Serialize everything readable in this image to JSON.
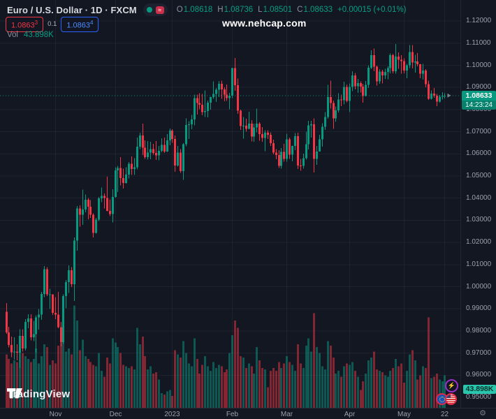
{
  "header": {
    "symbol_title": "Euro / U.S. Dollar · 1D · FXCM",
    "toggle": {
      "strategy_glyph": "≈"
    },
    "legend": {
      "o_label": "O",
      "o": "1.08618",
      "h_label": "H",
      "h": "1.08736",
      "l_label": "L",
      "l": "1.08501",
      "c_label": "C",
      "c": "1.08633",
      "change": "+0.00015 (+0.01%)"
    },
    "bid": {
      "main": "1.0863",
      "sup": "3"
    },
    "spread": "0.1",
    "ask": {
      "main": "1.0863",
      "sup": "4"
    },
    "vol_label": "Vol",
    "vol_value": "43.898K"
  },
  "watermark": "www.nehcap.com",
  "footer": {
    "logo_text": "TradingView"
  },
  "axis_right": {
    "price_badge": {
      "price": "1.08633",
      "countdown": "14:23:24"
    },
    "volume_badge": "43.898K"
  },
  "icons": {
    "gear": "⚙",
    "bolt": "⚡"
  },
  "chart_data": {
    "type": "candlestick_with_volume",
    "symbol": "EUR/USD",
    "interval": "1D",
    "exchange": "FXCM",
    "title": "Euro / U.S. Dollar",
    "colors": {
      "up": "#089981",
      "down": "#f23645",
      "vol_up": "rgba(8,153,129,0.5)",
      "vol_down": "rgba(242,54,69,0.5)"
    },
    "price_line": {
      "value": 1.08633,
      "label": "1.08633",
      "countdown": "14:23:24"
    },
    "y_axis": {
      "labels": [
        "1.12000",
        "1.11000",
        "1.10000",
        "1.09000",
        "1.08000",
        "1.07000",
        "1.06000",
        "1.05000",
        "1.04000",
        "1.03000",
        "1.02000",
        "1.01000",
        "1.00000",
        "0.99000",
        "0.98000",
        "0.97000",
        "0.96000",
        "0.95000"
      ]
    },
    "x_axis": {
      "ticks": [
        {
          "label": "Nov",
          "index": 18
        },
        {
          "label": "Dec",
          "index": 40
        },
        {
          "label": "2023",
          "index": 61
        },
        {
          "label": "Feb",
          "index": 83
        },
        {
          "label": "Mar",
          "index": 103
        },
        {
          "label": "Apr",
          "index": 126
        },
        {
          "label": "May",
          "index": 146
        },
        {
          "label": "22",
          "index": 161
        }
      ]
    },
    "candles_format": [
      "open",
      "high",
      "low",
      "close",
      "volume_k"
    ],
    "candles": [
      [
        0.9886,
        0.9926,
        0.9787,
        0.9794,
        72
      ],
      [
        0.9794,
        0.9819,
        0.9726,
        0.9737,
        66
      ],
      [
        0.9737,
        0.9774,
        0.9682,
        0.9704,
        60
      ],
      [
        0.9704,
        0.9772,
        0.967,
        0.9707,
        64
      ],
      [
        0.9707,
        0.974,
        0.9668,
        0.9702,
        62
      ],
      [
        0.9702,
        0.9807,
        0.9632,
        0.9777,
        92
      ],
      [
        0.9777,
        0.9807,
        0.9707,
        0.9721,
        74
      ],
      [
        0.9721,
        0.9854,
        0.9712,
        0.984,
        70
      ],
      [
        0.984,
        0.9875,
        0.9813,
        0.9857,
        66
      ],
      [
        0.9857,
        0.9875,
        0.9757,
        0.9772,
        62
      ],
      [
        0.9772,
        0.9845,
        0.9754,
        0.9785,
        66
      ],
      [
        0.9785,
        0.987,
        0.9704,
        0.9861,
        80
      ],
      [
        0.9861,
        0.9899,
        0.9806,
        0.9874,
        60
      ],
      [
        0.9874,
        0.9976,
        0.985,
        0.9967,
        70
      ],
      [
        0.9967,
        1.0093,
        0.9952,
        1.0079,
        86
      ],
      [
        1.0079,
        1.0089,
        0.9957,
        0.9965,
        82
      ],
      [
        0.9965,
        0.999,
        0.9899,
        0.9965,
        58
      ],
      [
        0.9965,
        0.9965,
        0.9872,
        0.9882,
        64
      ],
      [
        0.9882,
        0.9952,
        0.9853,
        0.9874,
        60
      ],
      [
        0.9874,
        0.9976,
        0.9813,
        0.9817,
        84
      ],
      [
        0.9817,
        0.984,
        0.973,
        0.975,
        88
      ],
      [
        0.975,
        0.9965,
        0.9741,
        0.9957,
        108
      ],
      [
        0.9957,
        1.003,
        0.9903,
        1.002,
        76
      ],
      [
        1.002,
        1.0096,
        0.9972,
        1.0074,
        80
      ],
      [
        1.0074,
        1.0089,
        0.9998,
        1.0011,
        72
      ],
      [
        1.0011,
        1.0222,
        0.9936,
        1.0209,
        138
      ],
      [
        1.0209,
        1.0364,
        1.0163,
        1.0353,
        118
      ],
      [
        1.0353,
        1.0368,
        1.0271,
        1.0325,
        78
      ],
      [
        1.0325,
        1.0438,
        1.0279,
        1.0349,
        92
      ],
      [
        1.0349,
        1.0417,
        1.0336,
        1.0393,
        70
      ],
      [
        1.0393,
        1.0401,
        1.0305,
        1.0362,
        66
      ],
      [
        1.0362,
        1.0391,
        1.031,
        1.0325,
        62
      ],
      [
        1.0325,
        1.0332,
        1.0223,
        1.0243,
        58
      ],
      [
        1.0243,
        1.031,
        1.024,
        1.0303,
        56
      ],
      [
        1.0303,
        1.0405,
        1.0296,
        1.0399,
        74
      ],
      [
        1.0399,
        1.0448,
        1.0382,
        1.041,
        50
      ],
      [
        1.041,
        1.0421,
        1.0354,
        1.04,
        42
      ],
      [
        1.04,
        1.0497,
        1.034,
        1.0343,
        68
      ],
      [
        1.0343,
        1.0394,
        1.0319,
        1.0328,
        60
      ],
      [
        1.0328,
        1.044,
        1.029,
        1.0406,
        94
      ],
      [
        1.0406,
        1.0539,
        1.0402,
        1.0525,
        88
      ],
      [
        1.0525,
        1.0545,
        1.0428,
        1.0537,
        82
      ],
      [
        1.0537,
        1.0585,
        1.0458,
        1.049,
        74
      ],
      [
        1.049,
        1.0533,
        1.0443,
        1.0468,
        58
      ],
      [
        1.0468,
        1.0539,
        1.0466,
        1.0506,
        56
      ],
      [
        1.0506,
        1.0563,
        1.0489,
        1.0556,
        54
      ],
      [
        1.0556,
        1.0589,
        1.0505,
        1.0531,
        56
      ],
      [
        1.0531,
        1.058,
        1.0505,
        1.0539,
        52
      ],
      [
        1.0539,
        1.0673,
        1.053,
        1.0632,
        108
      ],
      [
        1.0632,
        1.0695,
        1.0622,
        1.0683,
        86
      ],
      [
        1.0683,
        1.0737,
        1.0594,
        1.0628,
        96
      ],
      [
        1.0628,
        1.0661,
        1.0577,
        1.0585,
        70
      ],
      [
        1.0585,
        1.0658,
        1.0574,
        1.0606,
        52
      ],
      [
        1.0606,
        1.0655,
        1.0575,
        1.0622,
        56
      ],
      [
        1.0622,
        1.0645,
        1.0596,
        1.0604,
        46
      ],
      [
        1.0604,
        1.0657,
        1.0572,
        1.0593,
        48
      ],
      [
        1.0593,
        1.0636,
        1.0571,
        1.0613,
        38
      ],
      [
        1.0613,
        1.067,
        1.0608,
        1.064,
        20
      ],
      [
        1.064,
        1.0673,
        1.0604,
        1.061,
        18
      ],
      [
        1.061,
        1.069,
        1.0609,
        1.0661,
        22
      ],
      [
        1.0661,
        1.0714,
        1.0639,
        1.0705,
        24
      ],
      [
        1.0705,
        1.0712,
        1.065,
        1.0668,
        16
      ],
      [
        1.0668,
        1.0683,
        1.0519,
        1.0548,
        78
      ],
      [
        1.0548,
        1.0635,
        1.0542,
        1.0605,
        72
      ],
      [
        1.0605,
        1.0621,
        1.0515,
        1.0522,
        68
      ],
      [
        1.0522,
        1.0648,
        1.0482,
        1.0644,
        90
      ],
      [
        1.0644,
        1.0761,
        1.0634,
        1.073,
        74
      ],
      [
        1.073,
        1.0748,
        1.0668,
        1.0734,
        60
      ],
      [
        1.0734,
        1.0776,
        1.0711,
        1.0756,
        56
      ],
      [
        1.0756,
        1.0868,
        1.0729,
        1.0852,
        94
      ],
      [
        1.0852,
        1.0868,
        1.0778,
        1.083,
        66
      ],
      [
        1.083,
        1.0874,
        1.0801,
        1.0822,
        46
      ],
      [
        1.0822,
        1.087,
        1.0775,
        1.0789,
        58
      ],
      [
        1.0789,
        1.0887,
        1.0766,
        1.0793,
        70
      ],
      [
        1.0793,
        1.084,
        1.0765,
        1.0832,
        56
      ],
      [
        1.0832,
        1.0858,
        1.08,
        1.0856,
        50
      ],
      [
        1.0856,
        1.0927,
        1.0848,
        1.087,
        62
      ],
      [
        1.087,
        1.0898,
        1.0835,
        1.0889,
        54
      ],
      [
        1.0889,
        1.0929,
        1.0857,
        1.0916,
        58
      ],
      [
        1.0916,
        1.093,
        1.0848,
        1.0891,
        56
      ],
      [
        1.0891,
        1.09,
        1.0838,
        1.0867,
        48
      ],
      [
        1.0867,
        1.0913,
        1.0839,
        1.0852,
        52
      ],
      [
        1.0852,
        1.0875,
        1.0802,
        1.0863,
        74
      ],
      [
        1.0863,
        1.0989,
        1.0852,
        1.0987,
        98
      ],
      [
        1.0987,
        1.1033,
        1.0885,
        1.091,
        118
      ],
      [
        1.091,
        1.094,
        1.0781,
        1.0795,
        108
      ],
      [
        1.0795,
        1.08,
        1.0709,
        1.0725,
        70
      ],
      [
        1.0725,
        1.0766,
        1.0669,
        1.0727,
        68
      ],
      [
        1.0727,
        1.0759,
        1.0701,
        1.0713,
        54
      ],
      [
        1.0713,
        1.0791,
        1.0711,
        1.0737,
        60
      ],
      [
        1.0737,
        1.0752,
        1.0656,
        1.0679,
        56
      ],
      [
        1.0679,
        1.0736,
        1.0655,
        1.072,
        46
      ],
      [
        1.072,
        1.0804,
        1.0697,
        1.0736,
        82
      ],
      [
        1.0736,
        1.0743,
        1.066,
        1.069,
        64
      ],
      [
        1.069,
        1.0721,
        1.0655,
        1.0672,
        54
      ],
      [
        1.0672,
        1.0706,
        1.0612,
        1.0695,
        52
      ],
      [
        1.0695,
        1.0706,
        1.0668,
        1.0686,
        28
      ],
      [
        1.0686,
        1.0697,
        1.0636,
        1.0648,
        50
      ],
      [
        1.0648,
        1.0664,
        1.0598,
        1.0605,
        54
      ],
      [
        1.0605,
        1.0622,
        1.0576,
        1.0595,
        50
      ],
      [
        1.0595,
        1.0617,
        1.0536,
        1.0546,
        62
      ],
      [
        1.0546,
        1.0626,
        1.0533,
        1.0609,
        54
      ],
      [
        1.0609,
        1.0645,
        1.0565,
        1.0577,
        60
      ],
      [
        1.0577,
        1.0691,
        1.0565,
        1.0666,
        70
      ],
      [
        1.0666,
        1.0673,
        1.0577,
        1.0597,
        62
      ],
      [
        1.0597,
        1.0638,
        1.0567,
        1.0635,
        58
      ],
      [
        1.0635,
        1.0694,
        1.0616,
        1.068,
        50
      ],
      [
        1.068,
        1.0695,
        1.0532,
        1.0547,
        86
      ],
      [
        1.0547,
        1.0577,
        1.0524,
        1.0545,
        60
      ],
      [
        1.0545,
        1.0601,
        1.0533,
        1.0581,
        54
      ],
      [
        1.0581,
        1.0701,
        1.0574,
        1.0643,
        84
      ],
      [
        1.0643,
        1.0749,
        1.062,
        1.0729,
        94
      ],
      [
        1.0729,
        1.075,
        1.0674,
        1.0733,
        76
      ],
      [
        1.0733,
        1.076,
        1.0516,
        1.0577,
        128
      ],
      [
        1.0577,
        1.0635,
        1.0551,
        1.0611,
        82
      ],
      [
        1.0611,
        1.0686,
        1.0611,
        1.0665,
        74
      ],
      [
        1.0665,
        1.0738,
        1.0632,
        1.0722,
        56
      ],
      [
        1.0722,
        1.0788,
        1.0709,
        1.0767,
        52
      ],
      [
        1.0767,
        1.0912,
        1.0758,
        1.0856,
        90
      ],
      [
        1.0856,
        1.0931,
        1.0804,
        1.083,
        84
      ],
      [
        1.083,
        1.084,
        1.0713,
        1.076,
        68
      ],
      [
        1.076,
        1.0814,
        1.0745,
        1.0796,
        46
      ],
      [
        1.0796,
        1.0874,
        1.0787,
        1.0845,
        50
      ],
      [
        1.0845,
        1.0868,
        1.0815,
        1.0843,
        42
      ],
      [
        1.0843,
        1.0926,
        1.0824,
        1.0903,
        56
      ],
      [
        1.0903,
        1.0913,
        1.0833,
        1.0839,
        60
      ],
      [
        1.0839,
        1.0918,
        1.0788,
        1.0902,
        58
      ],
      [
        1.0902,
        1.0973,
        1.0884,
        1.0954,
        62
      ],
      [
        1.0954,
        1.0965,
        1.0892,
        1.0905,
        50
      ],
      [
        1.0905,
        1.0938,
        1.0875,
        1.092,
        42
      ],
      [
        1.092,
        1.0927,
        1.0877,
        1.0904,
        24
      ],
      [
        1.0904,
        1.0917,
        1.0831,
        1.0861,
        36
      ],
      [
        1.0861,
        1.0929,
        1.0859,
        1.0912,
        46
      ],
      [
        1.0912,
        1.1,
        1.0898,
        1.0989,
        64
      ],
      [
        1.0989,
        1.1068,
        1.0983,
        1.1046,
        68
      ],
      [
        1.1046,
        1.1076,
        1.0973,
        1.0994,
        76
      ],
      [
        1.0994,
        1.0999,
        1.0908,
        1.0927,
        52
      ],
      [
        1.0927,
        1.0983,
        1.0917,
        1.0971,
        50
      ],
      [
        1.0971,
        1.098,
        1.0918,
        1.0955,
        48
      ],
      [
        1.0955,
        1.0985,
        1.0938,
        1.097,
        44
      ],
      [
        1.097,
        1.0995,
        1.0937,
        1.0988,
        42
      ],
      [
        1.0988,
        1.1054,
        1.0964,
        1.1046,
        50
      ],
      [
        1.1046,
        1.1052,
        1.0963,
        1.0973,
        54
      ],
      [
        1.0973,
        1.1096,
        1.0962,
        1.104,
        66
      ],
      [
        1.104,
        1.1058,
        1.0985,
        1.1026,
        56
      ],
      [
        1.1026,
        1.1046,
        1.0962,
        1.1019,
        60
      ],
      [
        1.1019,
        1.1032,
        1.0963,
        1.0977,
        34
      ],
      [
        1.0977,
        1.1007,
        1.0942,
        1.1,
        50
      ],
      [
        1.1,
        1.1091,
        1.0987,
        1.106,
        72
      ],
      [
        1.106,
        1.1091,
        1.0986,
        1.1013,
        78
      ],
      [
        1.1013,
        1.1047,
        1.0967,
        1.1018,
        64
      ],
      [
        1.1018,
        1.1055,
        1.0996,
        1.1005,
        38
      ],
      [
        1.1005,
        1.1006,
        1.0942,
        1.0962,
        44
      ],
      [
        1.0962,
        1.1007,
        1.0936,
        1.0977,
        56
      ],
      [
        1.0977,
        1.0982,
        1.09,
        1.0915,
        54
      ],
      [
        1.0915,
        1.0931,
        1.0844,
        1.0849,
        122
      ],
      [
        1.0849,
        1.0887,
        1.0845,
        1.0873,
        40
      ],
      [
        1.0873,
        1.0898,
        1.0853,
        1.0863,
        42
      ],
      [
        1.0863,
        1.0871,
        1.0816,
        1.0836,
        46
      ],
      [
        1.0836,
        1.0866,
        1.0831,
        1.0858,
        38
      ],
      [
        1.0858,
        1.0879,
        1.0845,
        1.0862,
        36
      ],
      [
        1.08618,
        1.08736,
        1.08501,
        1.08633,
        43.898
      ]
    ]
  }
}
